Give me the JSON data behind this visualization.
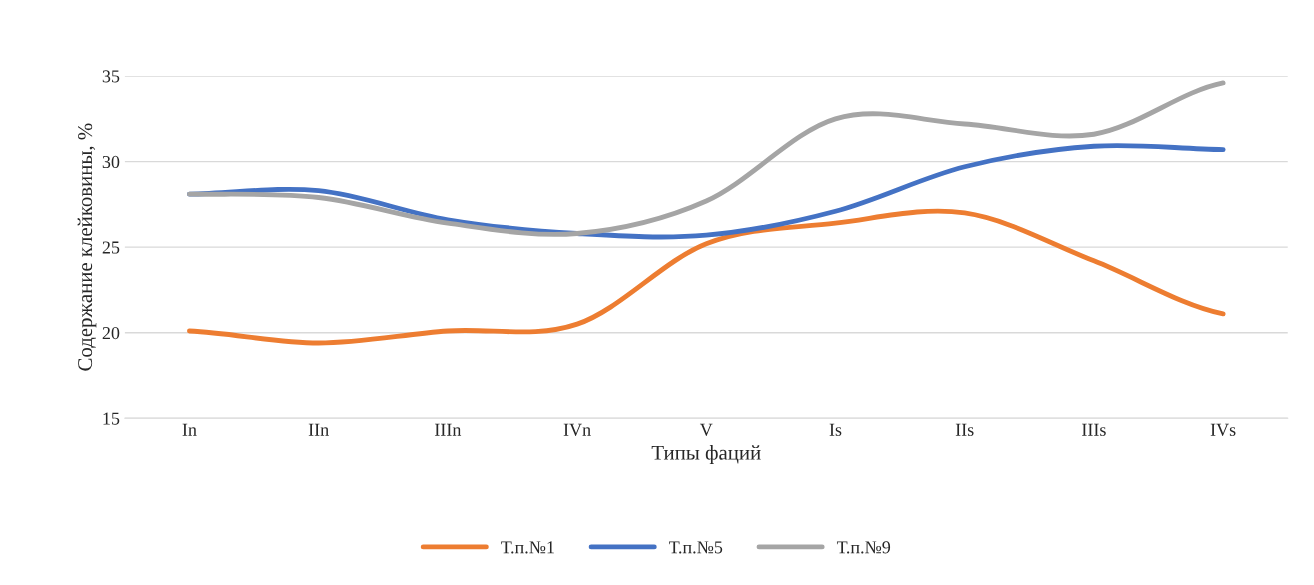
{
  "chart_data": {
    "type": "line",
    "xlabel": "Типы фаций",
    "ylabel": "Содержание клейковины, %",
    "categories": [
      "In",
      "IIn",
      "IIIn",
      "IVn",
      "V",
      "Is",
      "IIs",
      "IIIs",
      "IVs"
    ],
    "series": [
      {
        "name": "Т.п.№1",
        "color": "#ed7d31",
        "values": [
          20.1,
          19.4,
          20.1,
          20.5,
          25.2,
          26.4,
          27.0,
          24.2,
          21.1
        ]
      },
      {
        "name": "Т.п.№5",
        "color": "#4472c4",
        "values": [
          28.1,
          28.3,
          26.6,
          25.8,
          25.7,
          27.1,
          29.7,
          30.9,
          30.7
        ]
      },
      {
        "name": "Т.п.№9",
        "color": "#a5a5a5",
        "values": [
          28.1,
          27.9,
          26.4,
          25.8,
          27.7,
          32.5,
          32.2,
          31.6,
          34.6
        ]
      }
    ],
    "ylim": [
      15,
      35
    ],
    "yticks": [
      15,
      20,
      25,
      30,
      35
    ],
    "grid": "y",
    "legend": "bottom",
    "marker": "none",
    "line_style": "solid"
  }
}
